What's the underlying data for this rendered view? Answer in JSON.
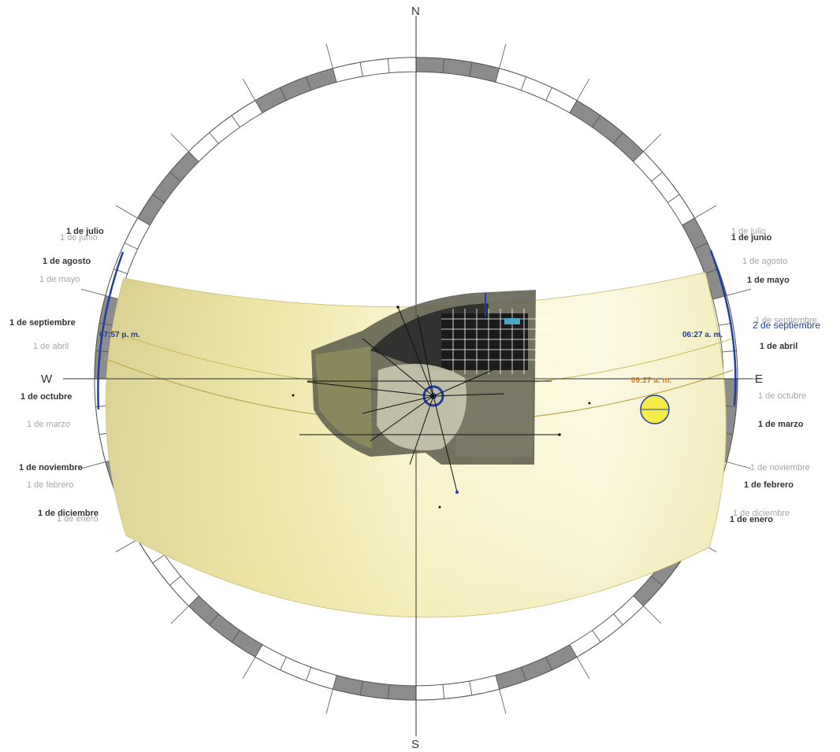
{
  "compass": {
    "north": "N",
    "south": "S",
    "east": "E",
    "west": "W"
  },
  "west_dates": {
    "jul": "1 de julio",
    "jun": "1 de junio",
    "aug": "1 de agosto",
    "may": "1 de mayo",
    "sep": "1 de septiembre",
    "apr": "1 de abril",
    "oct": "1 de octubre",
    "mar": "1 de marzo",
    "nov": "1 de noviembre",
    "feb": "1 de febrero",
    "dec": "1 de diciembre",
    "jan": "1 de enero"
  },
  "east_dates": {
    "jul": "1 de julio",
    "jun": "1 de junio",
    "aug": "1 de agosto",
    "may": "1 de mayo",
    "sep": "1 de septiembre",
    "current": "2 de septiembre",
    "apr": "1 de abril",
    "oct": "1 de octubre",
    "mar": "1 de marzo",
    "nov": "1 de noviembre",
    "feb": "1 de febrero",
    "dec": "1 de diciembre",
    "jan": "1 de enero"
  },
  "times": {
    "sunset": "07:57 p. m.",
    "sunrise": "06:27 a. m.",
    "current": "09:27 a. m."
  },
  "colors": {
    "sun_band": "#f7f0b4",
    "sun_disc": "#f5ec4a",
    "date_marker": "#1f3fa0",
    "current_time": "#d4801a",
    "ring_dark": "#8c8c8c"
  },
  "icons": {
    "sun": "sun-disc-icon",
    "building": "building-plan-icon"
  }
}
